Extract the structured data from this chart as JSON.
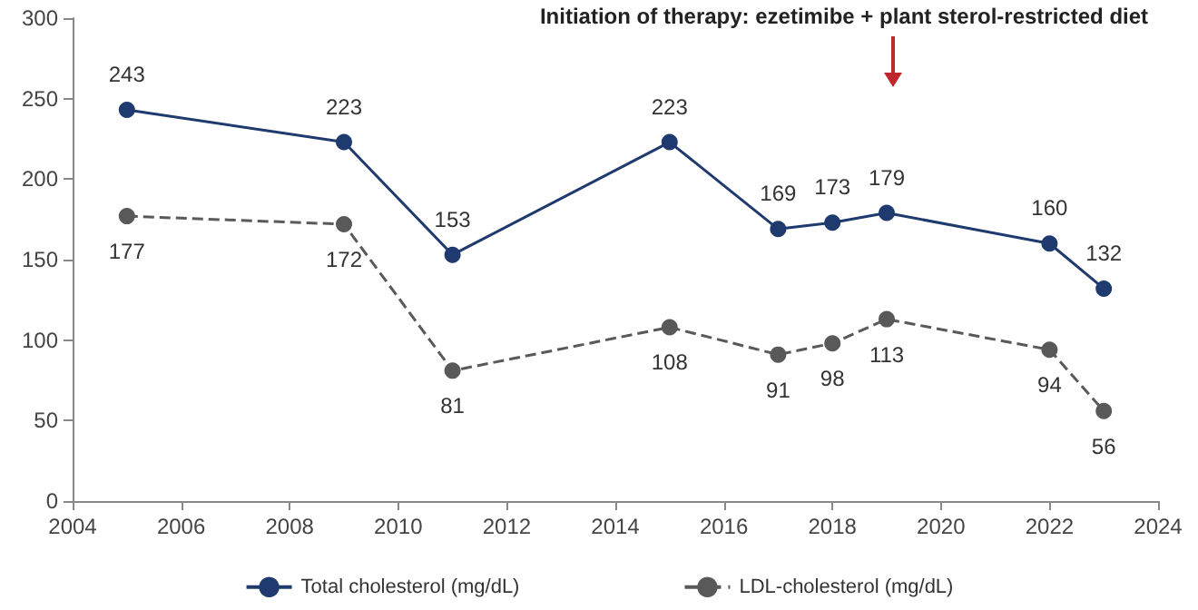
{
  "chart_data": {
    "type": "line",
    "x": [
      2005,
      2009,
      2011,
      2015,
      2017,
      2018,
      2019,
      2022,
      2023
    ],
    "series": [
      {
        "name": "Total cholesterol (mg/dL)",
        "color": "#1f3a6e",
        "values": [
          243,
          223,
          153,
          223,
          169,
          173,
          179,
          160,
          132
        ],
        "line_style": "solid"
      },
      {
        "name": "LDL-cholesterol (mg/dL)",
        "color": "#595959",
        "values": [
          177,
          172,
          81,
          108,
          91,
          98,
          113,
          94,
          56
        ],
        "line_style": "dashed"
      }
    ],
    "xlim": [
      2004,
      2024
    ],
    "xticks": [
      2004,
      2006,
      2008,
      2010,
      2012,
      2014,
      2016,
      2018,
      2020,
      2022,
      2024
    ],
    "ylim": [
      0,
      300
    ],
    "yticks": [
      0,
      50,
      100,
      150,
      200,
      250,
      300
    ],
    "annotations": [
      "Initiation of therapy: ezetimibe + plant sterol-restricted diet"
    ],
    "data_labels": true,
    "grid": false,
    "legend": "bottom",
    "marker": "circle"
  }
}
